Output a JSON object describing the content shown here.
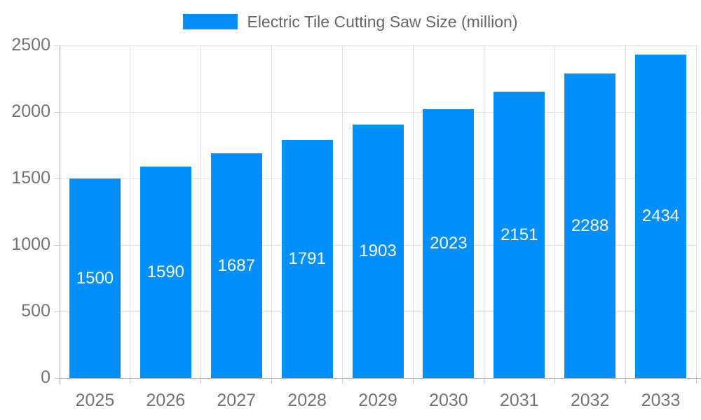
{
  "legend": {
    "label": "Electric Tile Cutting Saw Size (million)"
  },
  "chart_data": {
    "type": "bar",
    "title": "Electric Tile Cutting Saw Size (million)",
    "series_name": "Electric Tile Cutting Saw Size (million)",
    "categories": [
      "2025",
      "2026",
      "2027",
      "2028",
      "2029",
      "2030",
      "2031",
      "2032",
      "2033"
    ],
    "values": [
      1500,
      1590,
      1687,
      1791,
      1903,
      2023,
      2151,
      2288,
      2434
    ],
    "data_labels": [
      "1500",
      "1590",
      "1687",
      "1791",
      "1903",
      "2023",
      "2151",
      "2288",
      "2434"
    ],
    "xlabel": "",
    "ylabel": "",
    "ylim": [
      0,
      2500
    ],
    "yticks": [
      0,
      500,
      1000,
      1500,
      2000,
      2500
    ],
    "grid": true,
    "legend_position": "top",
    "colors": {
      "bar": "#008FFB",
      "data_label": "#FFFFFF",
      "tick_label": "#737373",
      "legend_text": "#666666",
      "gridline": "#E0E0E0",
      "axis_line": "#ABABAB",
      "tick_mark": "#C9C9C9",
      "background": "#FFFFFF"
    }
  }
}
